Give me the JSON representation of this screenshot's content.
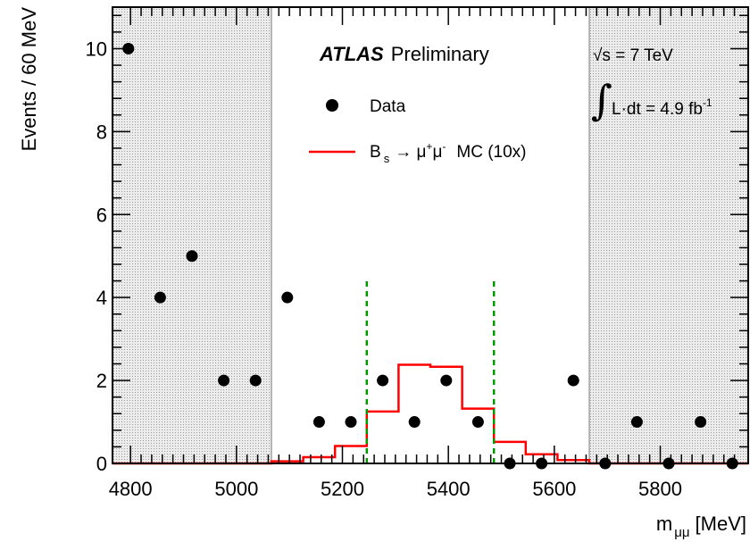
{
  "chart_data": {
    "type": "scatter",
    "title": "",
    "xlabel": "m",
    "xlabel_subscript": "μμ",
    "xlabel_unit": "[MeV]",
    "ylabel": "Events / 60 MeV",
    "xlim": [
      4766,
      5966
    ],
    "ylim": [
      0,
      11
    ],
    "x_ticks": [
      4800,
      5000,
      5200,
      5400,
      5600,
      5800
    ],
    "y_ticks": [
      0,
      2,
      4,
      6,
      8,
      10
    ],
    "atlas_label": "ATLAS",
    "atlas_sublabel": "Preliminary",
    "energy_label": "√s = 7 TeV",
    "lumi_label": "L·dt = 4.9 fb",
    "lumi_exponent": "-1",
    "sidebands": [
      [
        4766,
        5066
      ],
      [
        5666,
        5966
      ]
    ],
    "signal_window": [
      5246,
      5486
    ],
    "colors": {
      "mc": "#ff0000",
      "window": "#009900",
      "sideband": "#d8d8d8"
    },
    "legend": {
      "position": "top-center",
      "data_label": "Data",
      "mc_label_main": "B",
      "mc_label_sub": "s",
      "mc_label_arrow": "→ μ",
      "mc_label_sup1": "+",
      "mc_label_mu2": "μ",
      "mc_label_sup2": "-",
      "mc_label_tail": "MC (10x)"
    },
    "series": [
      {
        "name": "Data",
        "type": "scatter",
        "x": [
          4796,
          4856,
          4916,
          4976,
          5036,
          5096,
          5156,
          5216,
          5276,
          5336,
          5396,
          5456,
          5516,
          5576,
          5636,
          5696,
          5756,
          5816,
          5876,
          5936
        ],
        "y": [
          10,
          4,
          5,
          2,
          2,
          4,
          1,
          1,
          2,
          1,
          2,
          1,
          0,
          0,
          2,
          0,
          1,
          0,
          1,
          0
        ]
      },
      {
        "name": "B_s → μ+μ- MC (10x)",
        "type": "step",
        "edges": [
          4766,
          5066,
          5126,
          5186,
          5246,
          5306,
          5366,
          5426,
          5486,
          5546,
          5606,
          5666,
          5966
        ],
        "values": [
          0.0,
          0.05,
          0.15,
          0.42,
          1.25,
          2.38,
          2.33,
          1.32,
          0.52,
          0.22,
          0.08,
          0.0
        ]
      }
    ]
  }
}
